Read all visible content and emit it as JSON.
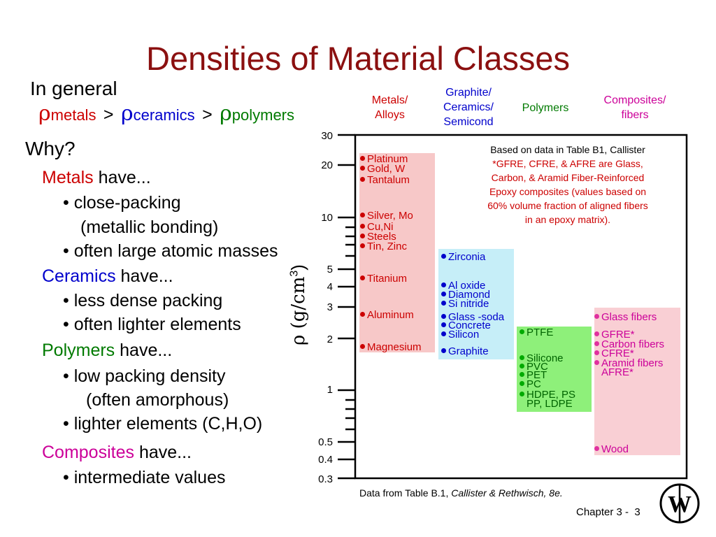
{
  "title": "Densities of Material Classes",
  "general": {
    "heading": "In general",
    "rho": "ρ",
    "metals": "metals",
    "ceramics": "ceramics",
    "polymers": "polymers",
    "gt": ">"
  },
  "left": {
    "why": "Why?",
    "metals_word": "Metals",
    "metals_have": " have...",
    "metals_b1": "• close-packing",
    "metals_b1b": "(metallic bonding)",
    "metals_b2": "• often large atomic masses",
    "ceramics_word": "Ceramics",
    "ceramics_have": " have...",
    "ceramics_b1": "• less dense packing",
    "ceramics_b2": "• often lighter elements",
    "polymers_word": "Polymers",
    "polymers_have": " have...",
    "polymers_b1": "• low packing density",
    "polymers_b1b": "(often amorphous)",
    "polymers_b2": "• lighter elements (C,H,O)",
    "composites_word": "Composites",
    "composites_have": " have...",
    "composites_b1": "• intermediate values"
  },
  "chart_headers": {
    "metals": [
      "Metals/",
      "Alloys"
    ],
    "ceramics": [
      "Graphite/",
      "Ceramics/",
      "Semicond"
    ],
    "polymers": "Polymers",
    "composites": [
      "Composites/",
      "fibers"
    ]
  },
  "axis": {
    "label": "ρ (g/cm",
    "sup": "3",
    "close": ")",
    "ticks": [
      "30",
      "20",
      "10",
      "5",
      "4",
      "3",
      "2",
      "1",
      "0.5",
      "0.4",
      "0.3"
    ]
  },
  "note": [
    "Based on data in Table B1, Callister",
    "*GFRE, CFRE, & AFRE are Glass,",
    "Carbon, & Aramid Fiber-Reinforced",
    "Epoxy composites (values based on",
    "60% volume fraction of aligned fibers",
    "in an epoxy matrix)."
  ],
  "metals": [
    "Platinum",
    "Gold, W",
    "Tantalum",
    "Silver, Mo",
    "Cu,Ni",
    "Steels",
    "Tin, Zinc",
    "Titanium",
    "Aluminum",
    "Magnesium"
  ],
  "ceramics": [
    "Zirconia",
    "Al oxide",
    "Diamond",
    "Si nitride",
    "Glass -soda",
    "Concrete",
    "Silicon",
    "Graphite"
  ],
  "polymers": [
    "PTFE",
    "Silicone",
    "PVC",
    "PET",
    "PC",
    "HDPE, PS",
    "PP, LDPE"
  ],
  "composites": [
    "Glass fibers",
    "GFRE*",
    "Carbon  fibers",
    "CFRE*",
    "Aramid fibers",
    "AFRE*",
    "Wood"
  ],
  "footer": {
    "source_prefix": "Data from Table B.1, ",
    "source_italic": "Callister & Rethwisch, 8e.",
    "chapter": "Chapter 3 -",
    "page": "3"
  },
  "colors": {
    "title": "#8b1010",
    "metals": "#cc0000",
    "ceramics": "#0000cc",
    "polymers": "#007a00",
    "composites": "#cc0099",
    "metal_box": "#f7c8c8",
    "ceramic_box": "#c6eef8",
    "polymer_box": "#8ef07a",
    "composite_box": "#f9cfd4"
  }
}
